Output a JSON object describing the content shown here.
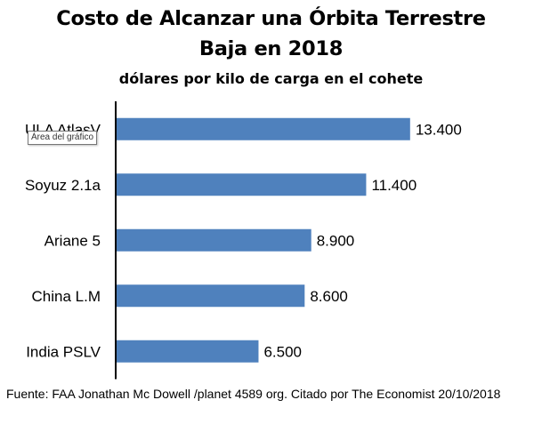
{
  "chart_data": {
    "type": "bar",
    "orientation": "horizontal",
    "title_line1": "Costo de Alcanzar  una Órbita Terrestre",
    "title_line2": "Baja en 2018",
    "subtitle": "dólares por kilo de carga en el cohete",
    "categories": [
      "ULA AtlasV",
      "Soyuz 2.1a",
      "Ariane 5",
      "China L.M",
      "India PSLV"
    ],
    "values": [
      13400,
      11400,
      8900,
      8600,
      6500
    ],
    "value_labels": [
      "13.400",
      "11.400",
      "8.900",
      "8.600",
      "6.500"
    ],
    "xlim": [
      0,
      16000
    ],
    "grid": false,
    "legend": "none",
    "bar_color": "#4F81BD"
  },
  "tooltip": "Área del gráfico",
  "source": "Fuente: FAA  Jonathan Mc Dowell  /planet  4589 org. Citado por The Economist 20/10/2018"
}
